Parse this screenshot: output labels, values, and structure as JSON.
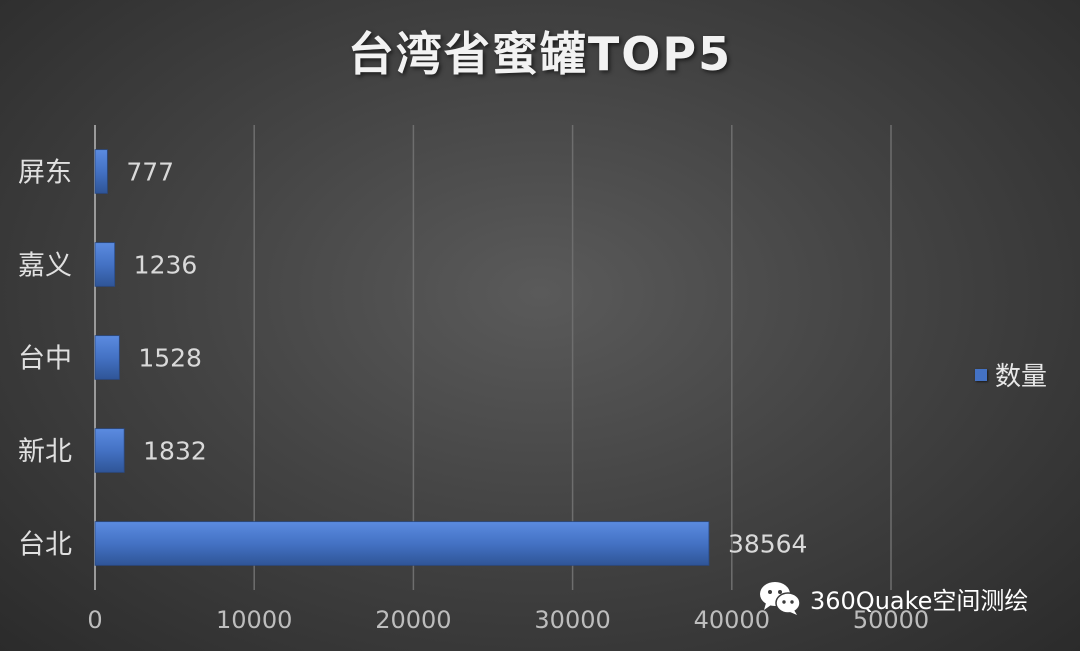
{
  "chart_data": {
    "type": "bar",
    "orientation": "horizontal",
    "title": "台湾省蜜罐TOP5",
    "categories": [
      "屏东",
      "嘉义",
      "台中",
      "新北",
      "台北"
    ],
    "series": [
      {
        "name": "数量",
        "values": [
          777,
          1236,
          1528,
          1832,
          38564
        ],
        "color": "#4472c4"
      }
    ],
    "xlim": [
      0,
      50000
    ],
    "xticks": [
      "0",
      "10000",
      "20000",
      "30000",
      "40000",
      "50000"
    ],
    "xlabel": "",
    "ylabel": "",
    "grid": "vertical",
    "legend_position": "right",
    "data_labels": true
  },
  "watermark": {
    "text": "360Quake空间测绘",
    "icon": "wechat-icon"
  }
}
